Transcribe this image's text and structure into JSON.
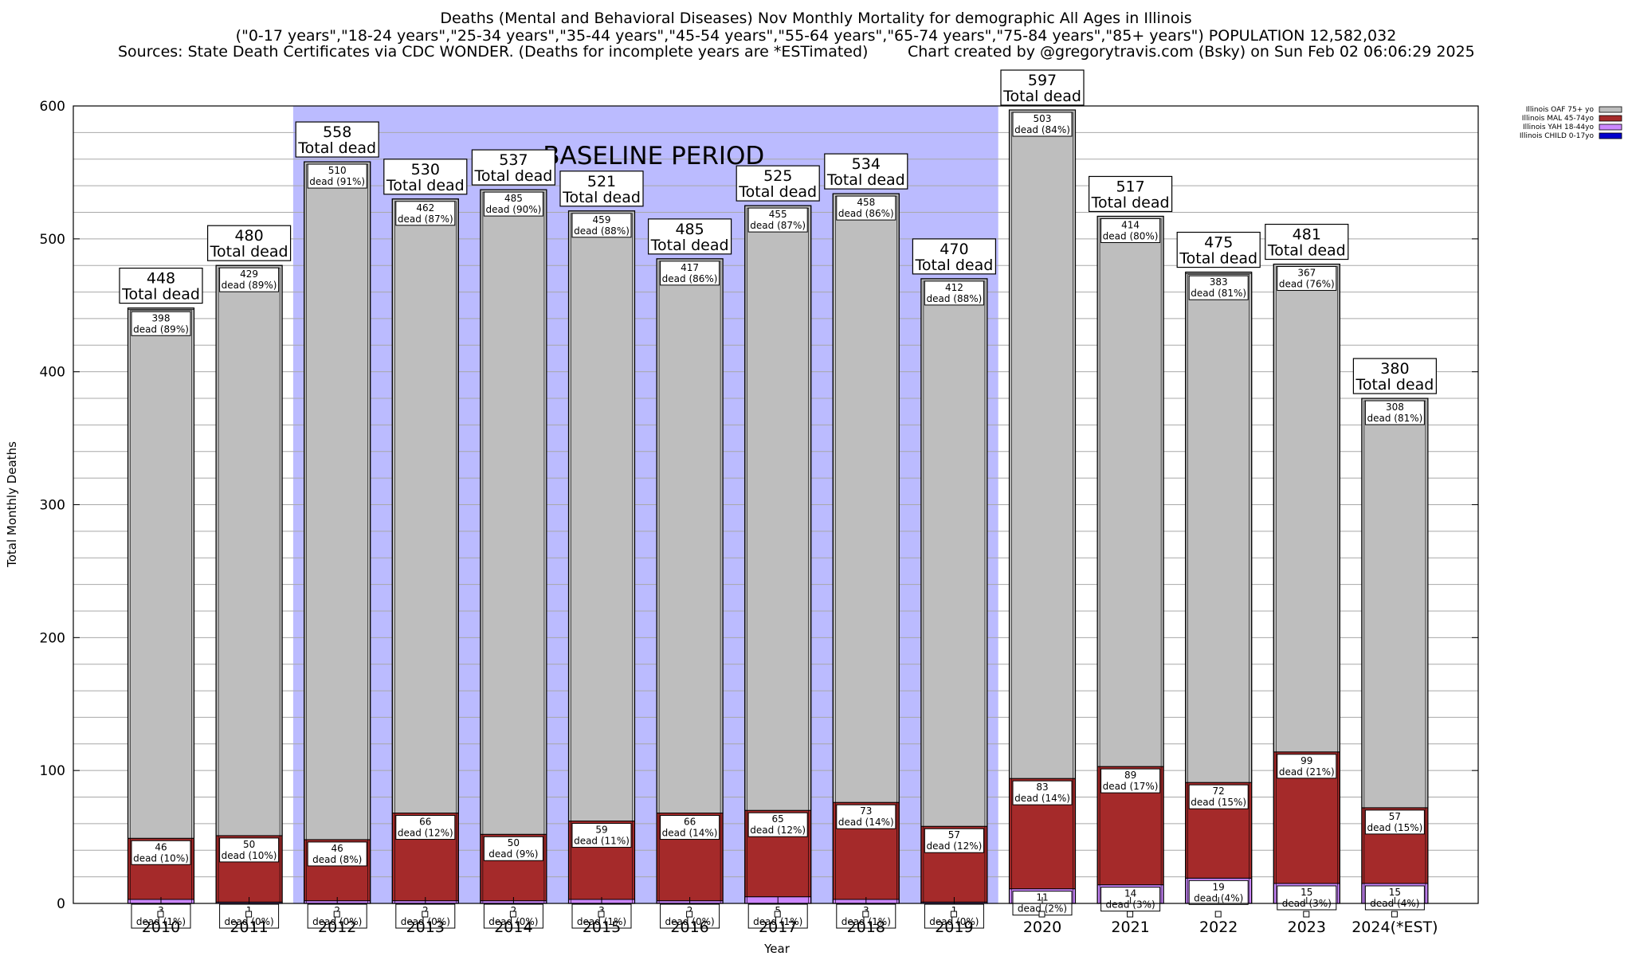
{
  "titles": {
    "line1": "Deaths (Mental and Behavioral Diseases) Nov Monthly Mortality for demographic All Ages in Illinois",
    "line2": "(\"0-17 years\",\"18-24 years\",\"25-34 years\",\"35-44 years\",\"45-54 years\",\"55-64 years\",\"65-74 years\",\"75-84 years\",\"85+ years\") POPULATION 12,582,032",
    "sources": "Sources: State Death Certificates via CDC WONDER. (Deaths for incomplete years are *ESTimated)",
    "credit": "Chart created by @gregorytravis.com (Bsky) on Sun Feb 02 06:06:29 2025"
  },
  "chart_data": {
    "type": "bar",
    "stacked": true,
    "xlabel": "Year",
    "ylabel": "Total Monthly Deaths",
    "ylim": [
      0,
      600
    ],
    "yticks": [
      0,
      100,
      200,
      300,
      400,
      500,
      600
    ],
    "grid": true,
    "legend_position": "top-right",
    "categories": [
      "2010",
      "2011",
      "2012",
      "2013",
      "2014",
      "2015",
      "2016",
      "2017",
      "2018",
      "2019",
      "2020",
      "2021",
      "2022",
      "2023",
      "2024(*EST)"
    ],
    "baseline": {
      "label": "BASELINE PERIOD",
      "from": "2012",
      "to": "2019",
      "color": "#bbbbff"
    },
    "total_label_suffix": "Total dead",
    "segment_label_prefix": "dead",
    "totals": [
      448,
      480,
      558,
      530,
      537,
      521,
      485,
      525,
      534,
      470,
      597,
      517,
      475,
      481,
      380
    ],
    "series": [
      {
        "name": "Illinois CHILD 0-17yo",
        "color": "#0000cc",
        "values": [
          0,
          0,
          0,
          0,
          0,
          0,
          0,
          0,
          0,
          0,
          0,
          0,
          0,
          0,
          0
        ],
        "pct": [
          "0%",
          "0%",
          "0%",
          "0%",
          "0%",
          "0%",
          "0%",
          "0%",
          "0%",
          "0%",
          "0%",
          "0%",
          "0%",
          "0%",
          "0%"
        ]
      },
      {
        "name": "Illinois YAH 18-44yo",
        "color": "#cc88ff",
        "values": [
          3,
          1,
          2,
          2,
          2,
          3,
          2,
          5,
          3,
          1,
          11,
          14,
          19,
          15,
          15
        ],
        "pct": [
          "1%",
          "0%",
          "0%",
          "0%",
          "0%",
          "1%",
          "0%",
          "1%",
          "1%",
          "0%",
          "2%",
          "3%",
          "4%",
          "3%",
          "4%"
        ]
      },
      {
        "name": "Illinois MAL 45-74yo",
        "color": "#a52a2a",
        "values": [
          46,
          50,
          46,
          66,
          50,
          59,
          66,
          65,
          73,
          57,
          83,
          89,
          72,
          99,
          57
        ],
        "pct": [
          "10%",
          "10%",
          "8%",
          "12%",
          "9%",
          "11%",
          "14%",
          "12%",
          "14%",
          "12%",
          "14%",
          "17%",
          "15%",
          "21%",
          "15%"
        ]
      },
      {
        "name": "Illinois OAF 75+ yo",
        "color": "#bebebe",
        "values": [
          398,
          429,
          510,
          462,
          485,
          459,
          417,
          455,
          458,
          412,
          503,
          414,
          383,
          367,
          308
        ],
        "pct": [
          "89%",
          "89%",
          "91%",
          "87%",
          "90%",
          "88%",
          "86%",
          "87%",
          "86%",
          "88%",
          "84%",
          "80%",
          "81%",
          "76%",
          "81%"
        ]
      }
    ]
  }
}
